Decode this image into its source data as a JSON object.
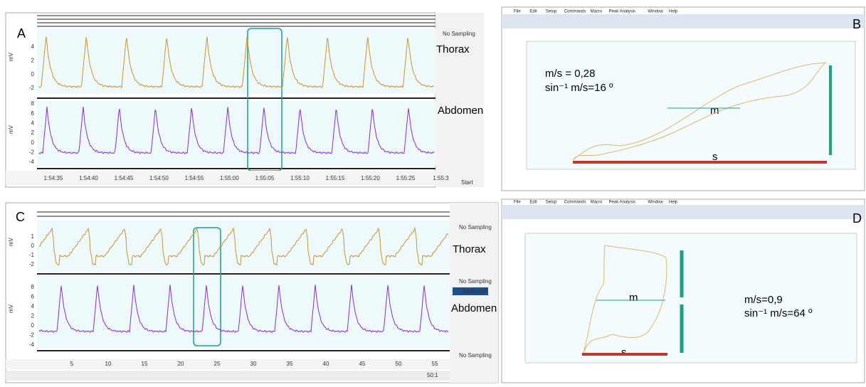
{
  "panels": [
    {
      "letter": "A",
      "thorax_label": "Thorax",
      "abdomen_label": "Abdomen",
      "unit": "mV",
      "status": "No Sampling",
      "button": "Start",
      "thorax_ticks": [
        "4",
        "2",
        "0",
        "-2"
      ],
      "abdomen_ticks": [
        "8",
        "6",
        "4",
        "2",
        "0",
        "-2",
        "-4"
      ],
      "time_ticks": [
        "1:54:35",
        "1:54:40",
        "1:54:45",
        "1:54:50",
        "1:54:55",
        "1:55:00",
        "1:55:05",
        "1:55:10",
        "1:55:15",
        "1:55:20",
        "1:55:25",
        "1:55:3"
      ]
    },
    {
      "letter": "B",
      "menu": [
        "File",
        "Edit",
        "Setup",
        "Commands",
        "Macro",
        "Peak Analysis",
        "Window",
        "Help"
      ],
      "ratio": "m/s =  0,28",
      "angle": "sin⁻¹ m/s=16 º",
      "m_label": "m",
      "s_label": "s"
    },
    {
      "letter": "C",
      "thorax_label": "Thorax",
      "abdomen_label": "Abdomen",
      "unit": "mV",
      "status": "No Sampling",
      "legend": "Abdomen",
      "zoom": "50:1",
      "thorax_ticks": [
        "1",
        "0",
        "-1",
        "-2"
      ],
      "abdomen_ticks": [
        "8",
        "6",
        "4",
        "2",
        "0",
        "-2",
        "-4"
      ],
      "time_ticks": [
        "5",
        "10",
        "15",
        "20",
        "25",
        "30",
        "35",
        "40",
        "45",
        "50",
        "55"
      ]
    },
    {
      "letter": "D",
      "menu": [
        "File",
        "Edit",
        "Setup",
        "Commands",
        "Macro",
        "Peak Analysis",
        "Window",
        "Help"
      ],
      "ratio": "m/s=0,9",
      "angle": "sin⁻¹ m/s=64 º",
      "m_label": "m",
      "s_label": "s"
    }
  ]
}
